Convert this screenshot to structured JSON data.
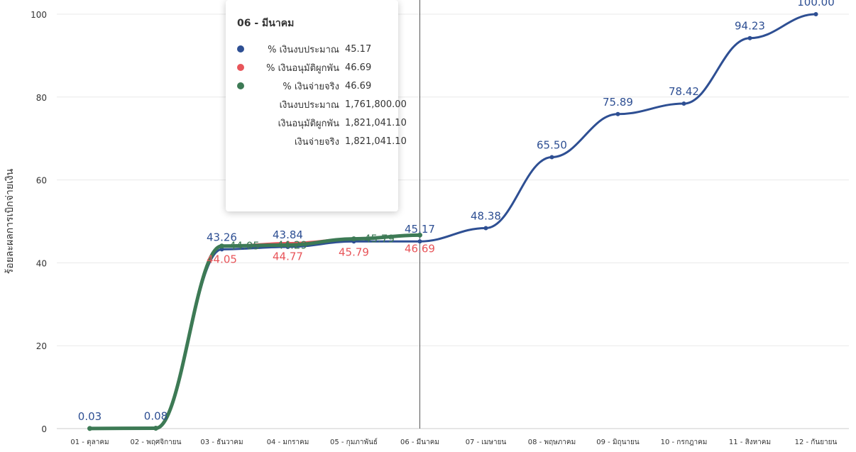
{
  "chart_data": {
    "type": "line",
    "title": "",
    "ylabel": "ร้อยละผลการเบิกจ่ายเงิน",
    "xlabel": "",
    "ylim": [
      0,
      100
    ],
    "yticks": [
      0,
      20,
      40,
      60,
      80,
      100
    ],
    "grid": true,
    "categories": [
      "01 - ตุลาคม",
      "02 - พฤศจิกายน",
      "03 - ธันวาคม",
      "04 - มกราคม",
      "05 - กุมภาพันธ์",
      "06 - มีนาคม",
      "07 - เมษายน",
      "08 - พฤษภาคม",
      "09 - มิถุนายน",
      "10 - กรกฎาคม",
      "11 - สิงหาคม",
      "12 - กันยายน"
    ],
    "series": [
      {
        "name": "% เงินงบประมาณ",
        "color": "#2e4f93",
        "values": [
          0.03,
          0.08,
          43.26,
          43.84,
          45.17,
          45.17,
          48.38,
          65.5,
          75.89,
          78.42,
          94.23,
          100.0
        ],
        "labels": [
          "0.03",
          "0.08",
          "43.26",
          "43.84",
          "",
          "45.17",
          "48.38",
          "65.50",
          "75.89",
          "78.42",
          "94.23",
          "100.00"
        ]
      },
      {
        "name": "% เงินอนุมัติผูกพัน",
        "color": "#e8555a",
        "values": [
          0.03,
          0.08,
          44.05,
          44.77,
          45.79,
          46.69,
          null,
          null,
          null,
          null,
          null,
          null
        ],
        "labels": [
          "",
          "",
          "44.05",
          "44.77",
          "45.79",
          "46.69",
          "",
          "",
          "",
          "",
          "",
          ""
        ]
      },
      {
        "name": "% เงินจ่ายจริง",
        "color": "#3d7a55",
        "values": [
          0.03,
          0.08,
          44.05,
          44.29,
          45.79,
          46.69,
          null,
          null,
          null,
          null,
          null,
          null
        ],
        "labels": [
          "",
          "",
          "",
          "",
          "",
          "",
          "",
          "",
          "",
          "",
          "",
          ""
        ]
      }
    ],
    "overlap_labels": [
      "44.05",
      "44.29",
      "45.79"
    ],
    "crosshair_category": "06 - มีนาคม"
  },
  "tooltip": {
    "title": "06 - มีนาคม",
    "rows": [
      {
        "name": "% เงินงบประมาณ",
        "value": "45.17",
        "color": "#2e4f93"
      },
      {
        "name": "% เงินอนุมัติผูกพัน",
        "value": "46.69",
        "color": "#e8555a"
      },
      {
        "name": "% เงินจ่ายจริง",
        "value": "46.69",
        "color": "#3d7a55"
      },
      {
        "name": "เงินงบประมาณ",
        "value": "1,761,800.00",
        "color": ""
      },
      {
        "name": "เงินอนุมัติผูกพัน",
        "value": "1,821,041.10",
        "color": ""
      },
      {
        "name": "เงินจ่ายจริง",
        "value": "1,821,041.10",
        "color": ""
      }
    ]
  }
}
